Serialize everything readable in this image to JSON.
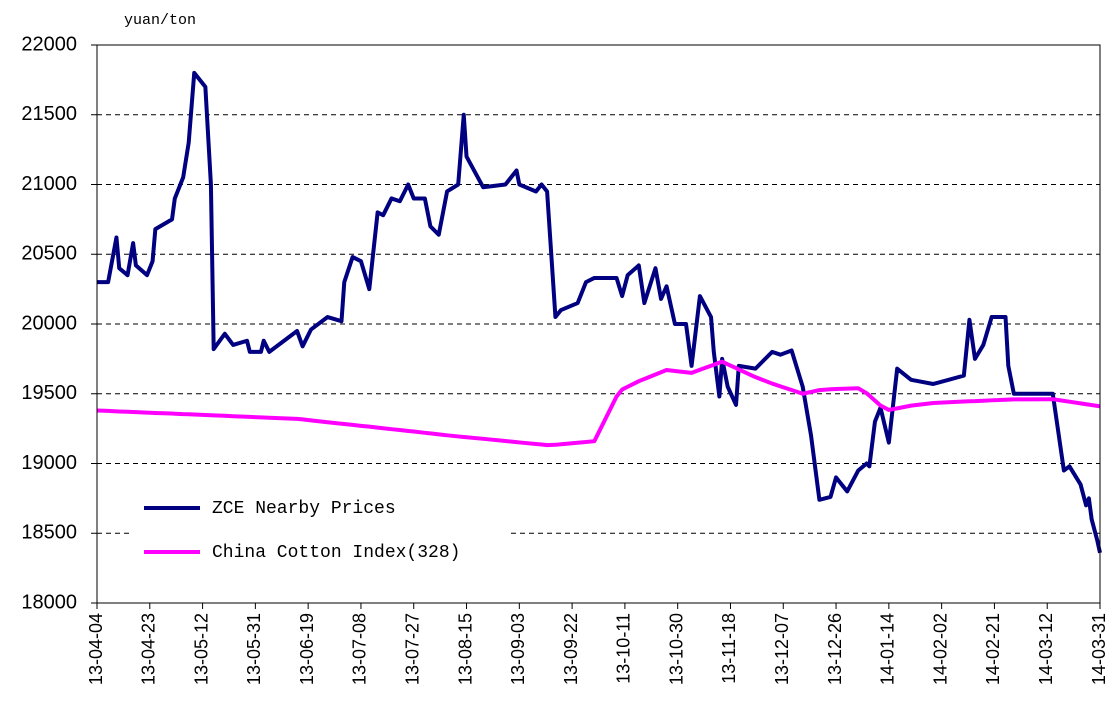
{
  "chart_data": {
    "type": "line",
    "y_unit": "yuan/ton",
    "x": [
      "13-04-04",
      "13-04-08",
      "13-04-11",
      "13-04-12",
      "13-04-15",
      "13-04-17",
      "13-04-18",
      "13-04-22",
      "13-04-24",
      "13-04-25",
      "13-05-01",
      "13-05-02",
      "13-05-05",
      "13-05-07",
      "13-05-09",
      "13-05-13",
      "13-05-15",
      "13-05-16",
      "13-05-20",
      "13-05-23",
      "13-05-28",
      "13-05-29",
      "13-06-02",
      "13-06-03",
      "13-06-05",
      "13-06-15",
      "13-06-17",
      "13-06-20",
      "13-06-26",
      "13-07-01",
      "13-07-02",
      "13-07-05",
      "13-07-08",
      "13-07-11",
      "13-07-14",
      "13-07-16",
      "13-07-19",
      "13-07-22",
      "13-07-25",
      "13-07-27",
      "13-07-31",
      "13-08-02",
      "13-08-05",
      "13-08-08",
      "13-08-12",
      "13-08-14",
      "13-08-15",
      "13-08-21",
      "13-08-29",
      "13-09-02",
      "13-09-03",
      "13-09-09",
      "13-09-11",
      "13-09-13",
      "13-09-16",
      "13-09-18",
      "13-09-24",
      "13-09-27",
      "13-09-30",
      "13-10-08",
      "13-10-10",
      "13-10-12",
      "13-10-16",
      "13-10-18",
      "13-10-22",
      "13-10-24",
      "13-10-26",
      "13-10-29",
      "13-11-02",
      "13-11-04",
      "13-11-07",
      "13-11-11",
      "13-11-12",
      "13-11-14",
      "13-11-15",
      "13-11-17",
      "13-11-20",
      "13-11-21",
      "13-11-27",
      "13-12-03",
      "13-12-06",
      "13-12-10",
      "13-12-14",
      "13-12-17",
      "13-12-20",
      "13-12-24",
      "13-12-26",
      "13-12-30",
      "14-01-03",
      "14-01-06",
      "14-01-07",
      "14-01-09",
      "14-01-11",
      "14-01-14",
      "14-01-17",
      "14-01-22",
      "14-01-30",
      "14-02-10",
      "14-02-12",
      "14-02-14",
      "14-02-17",
      "14-02-20",
      "14-02-25",
      "14-02-26",
      "14-02-28",
      "14-03-14",
      "14-03-18",
      "14-03-20",
      "14-03-24",
      "14-03-26",
      "14-03-27",
      "14-03-28",
      "14-03-30",
      "14-03-31"
    ],
    "series": [
      {
        "name": "ZCE Nearby Prices",
        "color": "#000080",
        "values": [
          20300,
          20300,
          20620,
          20400,
          20350,
          20580,
          20420,
          20350,
          20450,
          20680,
          20750,
          20900,
          21050,
          21300,
          21800,
          21700,
          21000,
          19820,
          19930,
          19850,
          19880,
          19800,
          19800,
          19880,
          19800,
          19950,
          19840,
          19960,
          20050,
          20020,
          20300,
          20480,
          20450,
          20250,
          20800,
          20780,
          20900,
          20880,
          21000,
          20900,
          20900,
          20700,
          20640,
          20950,
          21000,
          21500,
          21200,
          20980,
          21000,
          21100,
          21000,
          20950,
          21000,
          20950,
          20050,
          20100,
          20150,
          20300,
          20330,
          20330,
          20200,
          20350,
          20420,
          20150,
          20400,
          20180,
          20270,
          20000,
          20000,
          19700,
          20200,
          20050,
          19800,
          19480,
          19750,
          19550,
          19420,
          19700,
          19680,
          19800,
          19780,
          19810,
          19550,
          19200,
          18740,
          18760,
          18900,
          18800,
          18950,
          19000,
          18980,
          19300,
          19400,
          19150,
          19680,
          19600,
          19570,
          19630,
          20030,
          19750,
          19850,
          20050,
          20050,
          19700,
          19500,
          19500,
          18950,
          18980,
          18850,
          18700,
          18750,
          18600,
          18450,
          18360
        ]
      },
      {
        "name": "China Cotton Index(328)",
        "color": "#ff00ff",
        "values": [
          19380,
          19377,
          19374,
          19373,
          19371,
          19369,
          19368,
          19365,
          19363,
          19362,
          19358,
          19357,
          19354,
          19353,
          19351,
          19348,
          19346,
          19345,
          19342,
          19339,
          19335,
          19334,
          19331,
          19330,
          19328,
          19320,
          19316,
          19309,
          19296,
          19285,
          19283,
          19277,
          19270,
          19264,
          19257,
          19253,
          19246,
          19240,
          19233,
          19229,
          19220,
          19216,
          19209,
          19202,
          19194,
          19190,
          19188,
          19177,
          19161,
          19153,
          19151,
          19140,
          19136,
          19132,
          19134,
          19138,
          19149,
          19154,
          19160,
          19480,
          19530,
          19550,
          19590,
          19606,
          19638,
          19654,
          19670,
          19663,
          19654,
          19650,
          19672,
          19701,
          19708,
          19723,
          19730,
          19711,
          19684,
          19674,
          19619,
          19573,
          19553,
          19527,
          19500,
          19513,
          19526,
          19532,
          19534,
          19537,
          19539,
          19504,
          19487,
          19451,
          19416,
          19384,
          19395,
          19415,
          19434,
          19444,
          19446,
          19447,
          19450,
          19453,
          19457,
          19458,
          19460,
          19461,
          19449,
          19443,
          19431,
          19425,
          19422,
          19419,
          19413,
          19410
        ]
      }
    ],
    "xlim": [
      "13-04-04",
      "14-03-31"
    ],
    "xticks": [
      "13-04-04",
      "13-04-23",
      "13-05-12",
      "13-05-31",
      "13-06-19",
      "13-07-08",
      "13-07-27",
      "13-08-15",
      "13-09-03",
      "13-09-22",
      "13-10-11",
      "13-10-30",
      "13-11-18",
      "13-12-07",
      "13-12-26",
      "14-01-14",
      "14-02-02",
      "14-02-21",
      "14-03-12",
      "14-03-31"
    ],
    "ylim": [
      18000,
      22000
    ],
    "yticks": [
      18000,
      18500,
      19000,
      19500,
      20000,
      20500,
      21000,
      21500,
      22000
    ],
    "grid": true,
    "legend": "lower left"
  }
}
